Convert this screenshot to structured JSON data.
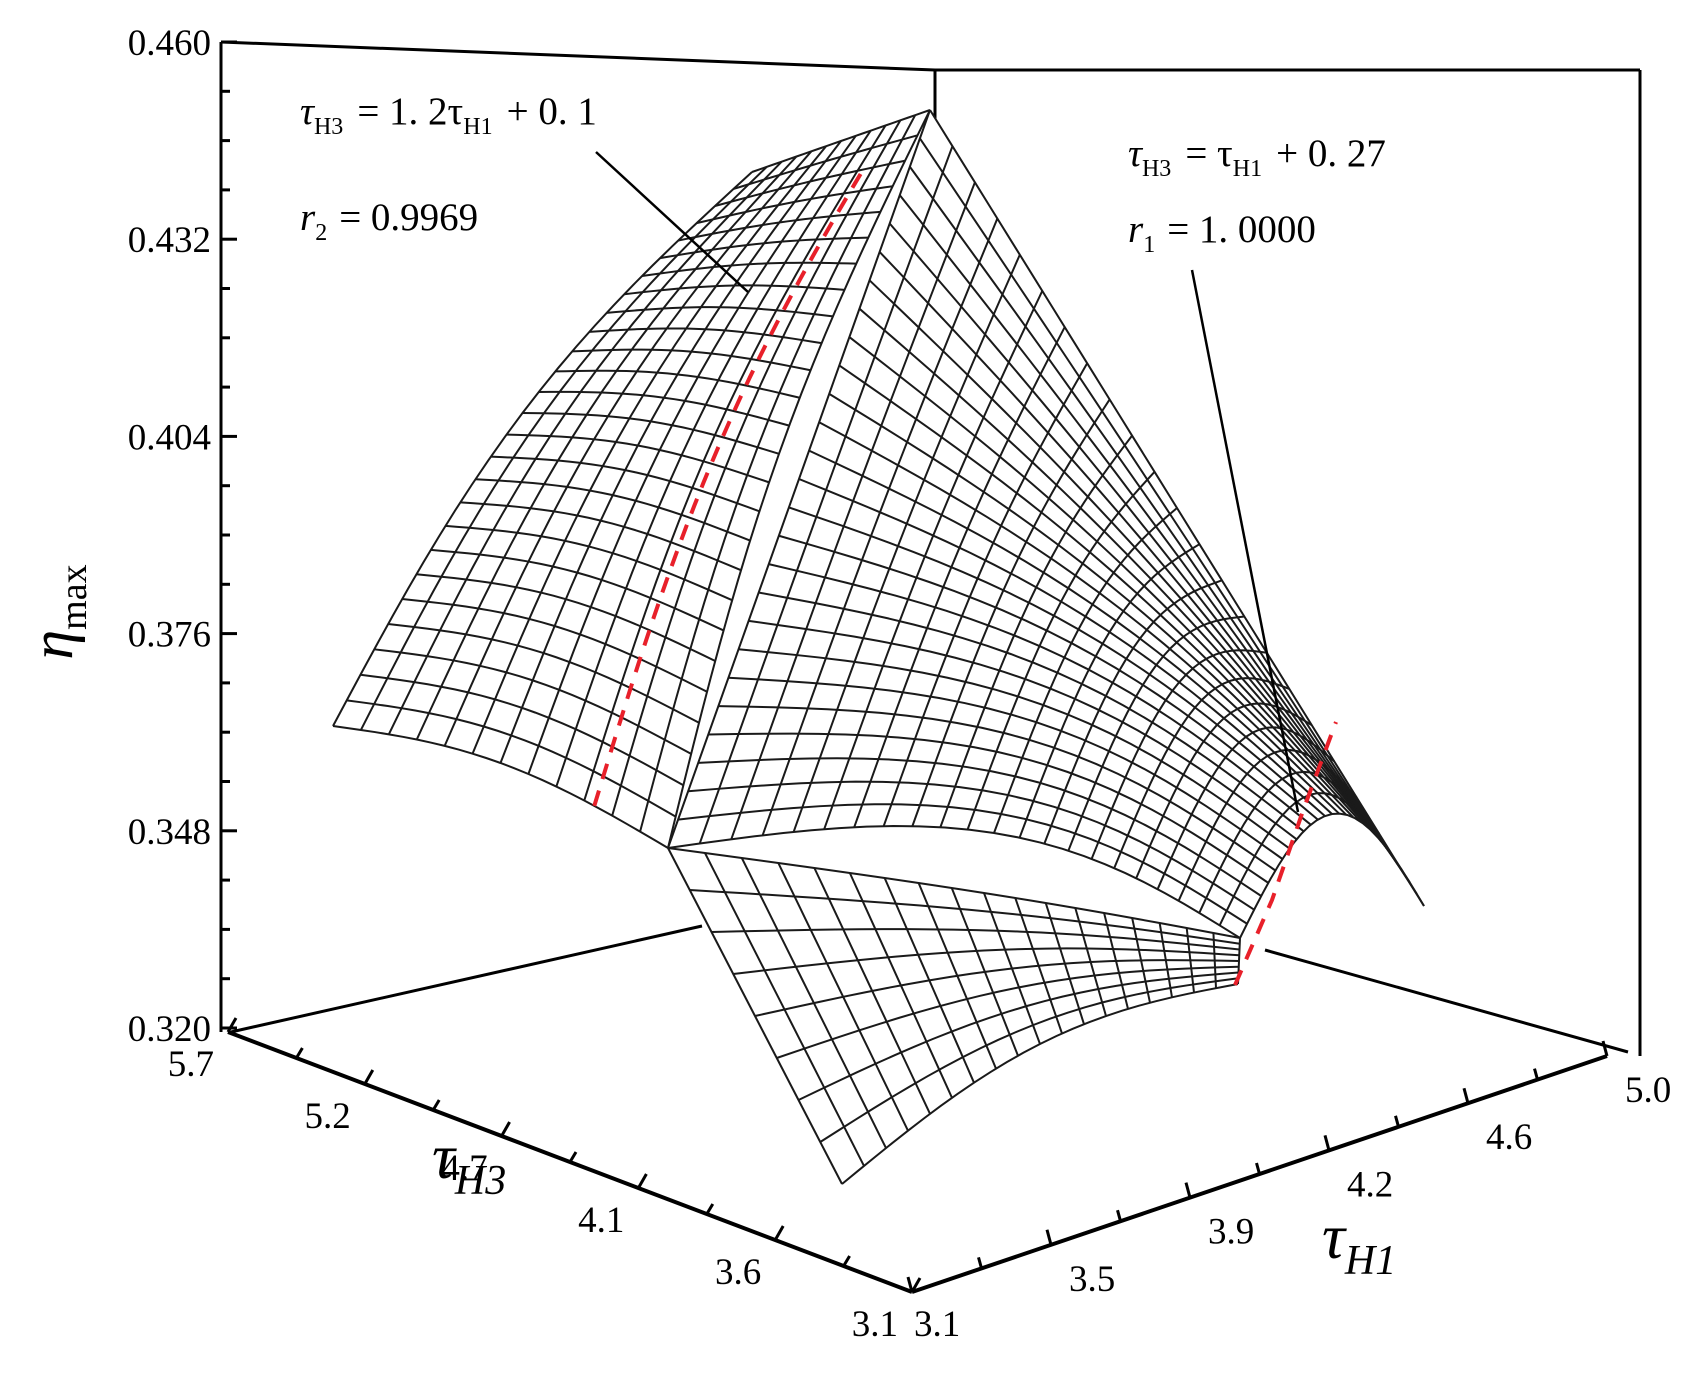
{
  "chart_data": {
    "type": "surface3d",
    "title": "",
    "z_axis": {
      "label_symbol": "η",
      "label_subscript": "max",
      "range": [
        0.32,
        0.46
      ],
      "tick_labels": [
        "0.320",
        "0.348",
        "0.376",
        "0.404",
        "0.432",
        "0.460"
      ]
    },
    "x_axis": {
      "label_symbol": "τ",
      "label_subscript": "H3",
      "range": [
        3.1,
        5.7
      ],
      "tick_labels": [
        "3.1",
        "3.6",
        "4.1",
        "4.7",
        "5.2",
        "5.7"
      ]
    },
    "y_axis": {
      "label_symbol": "τ",
      "label_subscript": "H1",
      "range": [
        3.1,
        5.0
      ],
      "tick_labels": [
        "3.1",
        "3.5",
        "3.9",
        "4.2",
        "4.6",
        "5.0"
      ]
    },
    "surface": {
      "description_values": {
        "peak_eta": 0.452,
        "corner_eta_at_tauH3_3.1_tauH1_3.1": 0.334,
        "corner_eta_at_tauH3_5.7_tauH1_3.1": 0.366,
        "corner_eta_at_tauH3_3.1_tauH1_5.0": 0.346
      }
    },
    "ridge_lines": [
      {
        "equation_lhs": "τ",
        "equation_lhs_sub": "H3",
        "equation_rhs": "= 1. 2τ",
        "equation_rhs_sub": "H1",
        "equation_tail": "+ 0. 1",
        "r_symbol": "r",
        "r_sub": "2",
        "r_value": "= 0.9969",
        "color": "#e8202a",
        "style": "dashed"
      },
      {
        "equation_lhs": "τ",
        "equation_lhs_sub": "H3",
        "equation_rhs": "= τ",
        "equation_rhs_sub": "H1",
        "equation_tail": "+ 0. 27",
        "r_symbol": "r",
        "r_sub": "1",
        "r_value": "= 1. 0000",
        "color": "#e8202a",
        "style": "dashed"
      }
    ],
    "grid": true,
    "mesh_color": "#1a1a1a",
    "background": "#ffffff"
  }
}
